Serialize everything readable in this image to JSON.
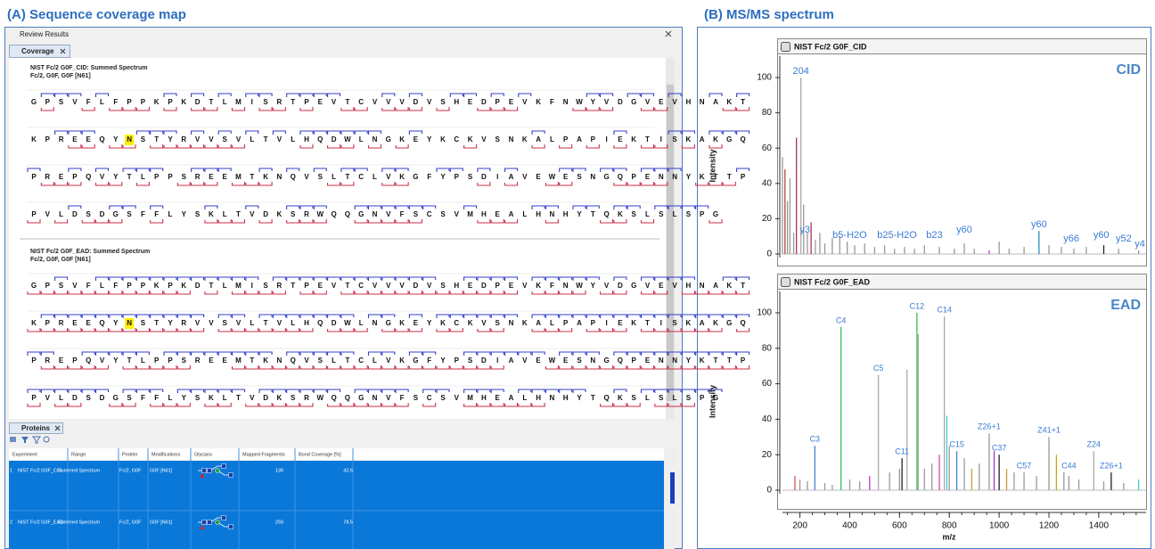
{
  "panels": {
    "left_title": "(A) Sequence coverage map",
    "right_title": "(B) MS/MS spectrum"
  },
  "window": {
    "title": "Review Results",
    "tab": "Coverage"
  },
  "coverage": {
    "blocks": [
      {
        "header": "NIST Fc/2 G0F_CID: Summed Spectrum",
        "subheader": "Fc/2, G0F, G0F [N61]",
        "rows": [
          [
            "GPSVFLFPPKPKDTLMISRTPEVTCVVVDVSHEDPEVKFNWYVDGVEVHNAKT"
          ],
          [
            "KPREEQY",
            "N",
            "STYRVVSVLTVLHQDWLNGKEYKCKVSNKALPAPIEKTISKAKGQ"
          ],
          [
            "PREPQVYTLPPSREEMTKNQVSLTCLVKGFYPSDIAVEWESNGQPENNYKTTP"
          ],
          [
            "PVLDSDGSFFLYSKLTVDKSRWQQGNVFSCSVMHEALHNHYTQKSLSLSPG"
          ]
        ]
      },
      {
        "header": "NIST Fc/2 G0F_EAD: Summed Spectrum",
        "subheader": "Fc/2, G0F, G0F [N61]",
        "rows": [
          [
            "GPSVFLFPPKPKDTLMISRTPEVTCVVVDVSHEDPEVKFNWYVDGVEVHNAKT"
          ],
          [
            "KPREEQY",
            "N",
            "STYRVVSVLTVLHQDWLNGKEYKCKVSNKALPAPIEKTISKAKGQ"
          ],
          [
            "PREPQVYTLPPSREEMTKNQVSLTCLVKGFYPSDIAVEWESNGQPENNYKTTP"
          ],
          [
            "PVLDSDGSFFLYSKLTVDKSRWQQGNVFSCSVMHEALHNHYTQKSLSLSPG"
          ]
        ]
      }
    ]
  },
  "proteins": {
    "tab": "Proteins",
    "columns": [
      "Experiment",
      "Range",
      "Protein",
      "Modifications",
      "Glycans",
      "Mapped Fragments",
      "Bond Coverage [%]"
    ],
    "rows": [
      [
        "1",
        "NIST Fc/2 G0F_CID",
        "Summed Spectrum",
        "Fc/2, G0F",
        "G0F [N61]",
        139,
        42.6
      ],
      [
        "2",
        "NIST Fc/2 G0F_EAD",
        "Summed Spectrum",
        "Fc/2, G0F",
        "G0F [N61]",
        293,
        78.5
      ]
    ]
  },
  "chart_data": [
    {
      "type": "spectrum",
      "title": "NIST Fc/2 G0F_CID",
      "label": "CID",
      "y_label": "Intensity",
      "xlim": [
        130,
        1590
      ],
      "ylim": [
        0,
        105
      ],
      "yticks": [
        0,
        20,
        40,
        60,
        80,
        100
      ],
      "x": [
        130,
        140,
        150,
        160,
        175,
        186,
        204,
        215,
        230,
        245,
        262,
        280,
        300,
        330,
        360,
        390,
        420,
        460,
        500,
        540,
        580,
        620,
        660,
        700,
        760,
        820,
        860,
        900,
        960,
        1000,
        1040,
        1100,
        1160,
        1200,
        1250,
        1300,
        1350,
        1420,
        1480,
        1560
      ],
      "values": [
        55,
        48,
        30,
        43,
        12,
        66,
        100,
        28,
        12,
        18,
        8,
        12,
        6,
        9,
        10,
        7,
        5,
        6,
        4,
        5,
        3,
        4,
        3,
        5,
        4,
        3,
        6,
        3,
        2,
        7,
        3,
        4,
        13,
        5,
        4,
        3,
        4,
        5,
        3,
        2
      ],
      "colors": [
        "#999999",
        "#b04444",
        "#999999",
        "#999999",
        "#999999",
        "#b0305a",
        "#aaaaaa",
        "#999999",
        "#999999",
        "#b0305a",
        "#999999",
        "#999999",
        "#999999",
        "#999999",
        "#999999",
        "#999999",
        "#999999",
        "#999999",
        "#999999",
        "#999999",
        "#999999",
        "#999999",
        "#999999",
        "#999999",
        "#999999",
        "#999999",
        "#999999",
        "#999999",
        "#cc33cc",
        "#999999",
        "#999999",
        "#999999",
        "#2a8fbf",
        "#999999",
        "#999999",
        "#999999",
        "#999999",
        "#222222",
        "#999999",
        "#999999"
      ],
      "annotations": [
        {
          "text": "204",
          "x": 204,
          "y": 100
        },
        {
          "text": "y3",
          "x": 220,
          "y": 10
        },
        {
          "text": "b5-H2O",
          "x": 400,
          "y": 7
        },
        {
          "text": "b25-H2O",
          "x": 590,
          "y": 7
        },
        {
          "text": "b23",
          "x": 740,
          "y": 7
        },
        {
          "text": "y60",
          "x": 860,
          "y": 10
        },
        {
          "text": "y60",
          "x": 1160,
          "y": 13
        },
        {
          "text": "y66",
          "x": 1290,
          "y": 5
        },
        {
          "text": "y60",
          "x": 1410,
          "y": 7
        },
        {
          "text": "y52",
          "x": 1500,
          "y": 5
        },
        {
          "text": "y4",
          "x": 1565,
          "y": 2
        }
      ]
    },
    {
      "type": "spectrum",
      "title": "NIST Fc/2 G0F_EAD",
      "label": "EAD",
      "y_label": "Intensity",
      "x_label": "m/z",
      "xlim": [
        130,
        1590
      ],
      "ylim": [
        0,
        105
      ],
      "yticks": [
        0,
        20,
        40,
        60,
        80,
        100
      ],
      "xticks": [
        200,
        400,
        600,
        800,
        1000,
        1200,
        1400
      ],
      "x": [
        180,
        200,
        230,
        260,
        300,
        330,
        365,
        400,
        440,
        480,
        515,
        560,
        600,
        610,
        630,
        670,
        675,
        700,
        730,
        760,
        780,
        790,
        800,
        830,
        860,
        890,
        920,
        960,
        980,
        1000,
        1030,
        1060,
        1100,
        1150,
        1200,
        1230,
        1260,
        1280,
        1320,
        1380,
        1420,
        1450,
        1500,
        1560
      ],
      "values": [
        8,
        6,
        5,
        25,
        4,
        3,
        92,
        6,
        5,
        8,
        65,
        10,
        12,
        18,
        68,
        100,
        88,
        12,
        15,
        20,
        98,
        42,
        25,
        22,
        18,
        12,
        15,
        32,
        22,
        20,
        12,
        10,
        10,
        8,
        30,
        20,
        10,
        8,
        6,
        22,
        5,
        10,
        4,
        6
      ],
      "colors": [
        "#cc5555",
        "#999999",
        "#999999",
        "#4a7fd0",
        "#999999",
        "#999999",
        "#3cbf4a",
        "#999999",
        "#999999",
        "#cc33cc",
        "#aaaaaa",
        "#999999",
        "#999999",
        "#222222",
        "#aaaaaa",
        "#3cbf4a",
        "#aaaaaa",
        "#999999",
        "#999999",
        "#dd44aa",
        "#aaaaaa",
        "#44cccc",
        "#999999",
        "#4a7fd0",
        "#999999",
        "#cc9933",
        "#999999",
        "#999999",
        "#9933cc",
        "#222222",
        "#cc9933",
        "#999999",
        "#999999",
        "#999999",
        "#999999",
        "#d4a017",
        "#999999",
        "#999999",
        "#999999",
        "#aaaaaa",
        "#999999",
        "#222222",
        "#999999",
        "#44cccc"
      ],
      "annotations": [
        {
          "text": "C3",
          "x": 260,
          "y": 25
        },
        {
          "text": "C4",
          "x": 365,
          "y": 92
        },
        {
          "text": "C5",
          "x": 515,
          "y": 65
        },
        {
          "text": "C11",
          "x": 610,
          "y": 18
        },
        {
          "text": "C12",
          "x": 670,
          "y": 100
        },
        {
          "text": "C14",
          "x": 780,
          "y": 98
        },
        {
          "text": "C15",
          "x": 830,
          "y": 22
        },
        {
          "text": "Z26+1",
          "x": 960,
          "y": 32
        },
        {
          "text": "C37",
          "x": 1000,
          "y": 20
        },
        {
          "text": "C57",
          "x": 1100,
          "y": 10
        },
        {
          "text": "Z41+1",
          "x": 1200,
          "y": 30
        },
        {
          "text": "C44",
          "x": 1280,
          "y": 10
        },
        {
          "text": "Z24",
          "x": 1380,
          "y": 22
        },
        {
          "text": "Z26+1",
          "x": 1450,
          "y": 10
        }
      ]
    }
  ]
}
